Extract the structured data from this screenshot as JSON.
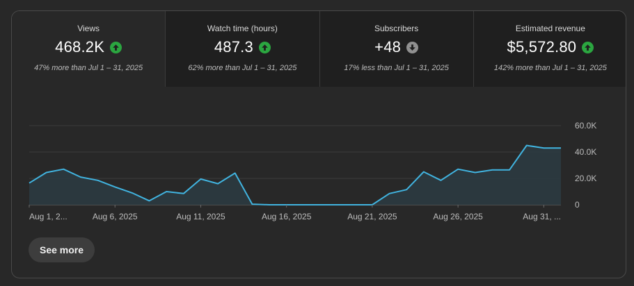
{
  "metrics": [
    {
      "label": "Views",
      "value": "468.2K",
      "trend": "up",
      "comparison": "47% more than Jul 1 – 31, 2025",
      "selected": true
    },
    {
      "label": "Watch time (hours)",
      "value": "487.3",
      "trend": "up",
      "comparison": "62% more than Jul 1 – 31, 2025",
      "selected": false
    },
    {
      "label": "Subscribers",
      "value": "+48",
      "trend": "down",
      "comparison": "17% less than Jul 1 – 31, 2025",
      "selected": false
    },
    {
      "label": "Estimated revenue",
      "value": "$5,572.80",
      "trend": "up",
      "comparison": "142% more than Jul 1 – 31, 2025",
      "selected": false
    }
  ],
  "colors": {
    "trend_up": "#2ba640",
    "trend_down": "#909090",
    "line": "#41b4e0",
    "area": "#2b3a40"
  },
  "chart_data": {
    "type": "area",
    "x_labels": [
      "Aug 1, 2...",
      "Aug 6, 2025",
      "Aug 11, 2025",
      "Aug 16, 2025",
      "Aug 21, 2025",
      "Aug 26, 2025",
      "Aug 31, ..."
    ],
    "x_label_days": [
      1,
      6,
      11,
      16,
      21,
      26,
      31
    ],
    "x": [
      1,
      2,
      3,
      4,
      5,
      6,
      7,
      8,
      9,
      10,
      11,
      12,
      13,
      14,
      15,
      16,
      17,
      18,
      19,
      20,
      21,
      22,
      23,
      24,
      25,
      26,
      27,
      28,
      29,
      30,
      31,
      32
    ],
    "values": [
      16500,
      24500,
      27000,
      21000,
      18500,
      13500,
      9000,
      3000,
      10000,
      8500,
      19500,
      16000,
      24000,
      500,
      0,
      0,
      0,
      0,
      0,
      0,
      0,
      8500,
      11500,
      25000,
      18500,
      27000,
      24500,
      26500,
      26500,
      45000,
      43000,
      43000
    ],
    "y_ticks": [
      0,
      20000,
      40000,
      60000
    ],
    "y_tick_labels": [
      "0",
      "20.0K",
      "40.0K",
      "60.0K"
    ],
    "ylim": [
      0,
      60000
    ],
    "grid": true
  },
  "see_more_label": "See more"
}
